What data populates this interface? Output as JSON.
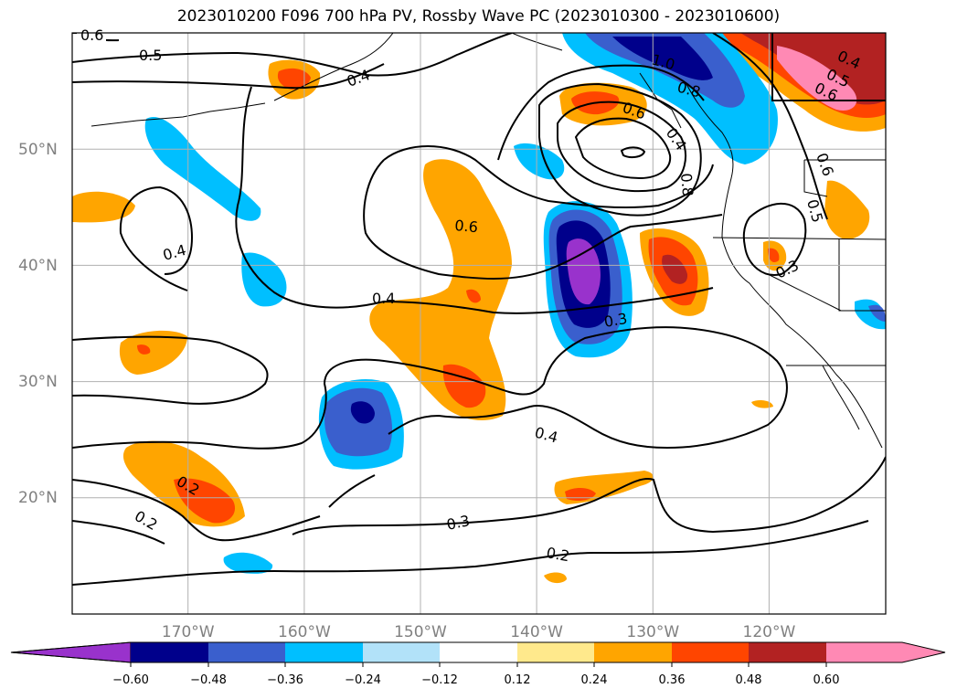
{
  "title": "2023010200 F096 700 hPa PV, Rossby Wave PC (2023010300 - 2023010600)",
  "map": {
    "lon_range": [
      180,
      110
    ],
    "lat_range": [
      10,
      60
    ],
    "lat_ticks": [
      "50°N",
      "40°N",
      "30°N",
      "20°N"
    ],
    "lon_ticks": [
      "170°W",
      "160°W",
      "150°W",
      "140°W",
      "130°W",
      "120°W"
    ],
    "gridlines": true,
    "contour_labels": [
      "0.6",
      "0.5",
      "0.4",
      "1.0",
      "0.8",
      "0.8",
      "0.6",
      "0.4",
      "0.5",
      "0.6",
      "0.5",
      "0.6",
      "0.4",
      "0.4",
      "0.3",
      "0.3",
      "0.4",
      "0.2",
      "0.2",
      "0.3",
      "0.2"
    ]
  },
  "colorbar": {
    "ticks": [
      "−0.60",
      "−0.48",
      "−0.36",
      "−0.24",
      "−0.12",
      "0.12",
      "0.24",
      "0.36",
      "0.48",
      "0.60"
    ],
    "colors": [
      "#9932CC",
      "#00008B",
      "#3A5FCD",
      "#00BFFF",
      "#B2E2F9",
      "#FFFFFF",
      "#FFE98C",
      "#FFA500",
      "#FF4500",
      "#B22222",
      "#FF89B4"
    ]
  }
}
